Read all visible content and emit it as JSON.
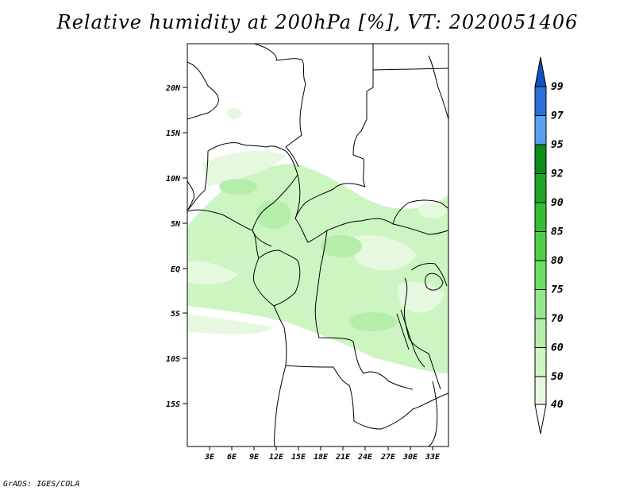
{
  "title": "Relative humidity at 200hPa [%], VT: 2020051406",
  "credit": "GrADS: IGES/COLA",
  "map": {
    "lat_labels": [
      "20N",
      "15N",
      "10N",
      "5N",
      "EQ",
      "5S",
      "10S",
      "15S"
    ],
    "lon_labels": [
      "3E",
      "6E",
      "9E",
      "12E",
      "15E",
      "18E",
      "21E",
      "24E",
      "27E",
      "30E",
      "33E"
    ]
  },
  "colorbar": {
    "levels": [
      "40",
      "50",
      "60",
      "70",
      "75",
      "80",
      "85",
      "90",
      "92",
      "95",
      "97",
      "99"
    ],
    "colors": [
      "#ffffff",
      "#e6f9e0",
      "#ccf5c2",
      "#b4eeaa",
      "#94e68a",
      "#6fdc64",
      "#4fcf48",
      "#35bd33",
      "#20a52a",
      "#0f8c1a",
      "#5aa0f0",
      "#2a70d8",
      "#1550c0"
    ]
  }
}
